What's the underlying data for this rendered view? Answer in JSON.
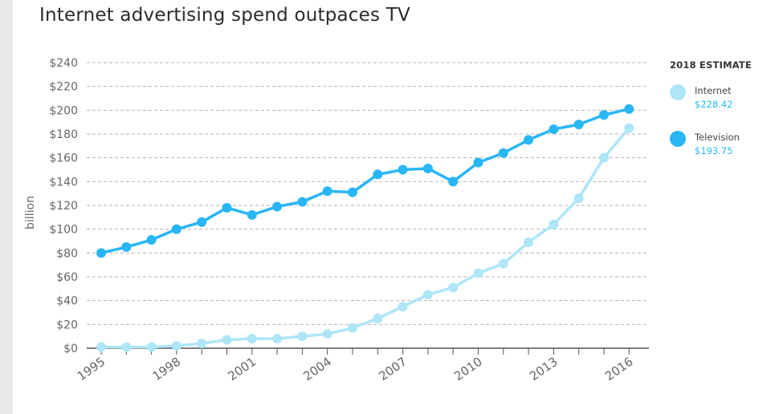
{
  "title": "Internet advertising spend outpaces TV",
  "chart_data": {
    "type": "line",
    "title": "Internet advertising spend outpaces TV",
    "ylabel": "billion",
    "xlabel": "",
    "ylim": [
      0,
      240
    ],
    "yticks": [
      0,
      20,
      40,
      60,
      80,
      100,
      120,
      140,
      160,
      180,
      200,
      220,
      240
    ],
    "ytick_labels": [
      "$0",
      "$20",
      "$40",
      "$60",
      "$80",
      "$100",
      "$120",
      "$140",
      "$160",
      "$180",
      "$200",
      "$220",
      "$240"
    ],
    "x": [
      1995,
      1996,
      1997,
      1998,
      1999,
      2000,
      2001,
      2002,
      2003,
      2004,
      2005,
      2006,
      2007,
      2008,
      2009,
      2010,
      2011,
      2012,
      2013,
      2014,
      2015,
      2016
    ],
    "xtick_labels": [
      "1995",
      "1998",
      "2001",
      "2004",
      "2007",
      "2010",
      "2013",
      "2016"
    ],
    "grid": "horizontal dashed",
    "series": [
      {
        "name": "Internet",
        "color": "#aee6f8",
        "values": [
          1,
          1,
          1,
          2,
          4,
          7,
          8,
          8,
          10,
          12,
          17,
          25,
          35,
          45,
          51,
          63,
          71,
          89,
          104,
          126,
          160,
          185
        ]
      },
      {
        "name": "Television",
        "color": "#29b6f6",
        "values": [
          80,
          85,
          91,
          100,
          106,
          118,
          112,
          119,
          123,
          132,
          131,
          146,
          150,
          151,
          140,
          156,
          164,
          175,
          184,
          188,
          196,
          201
        ]
      }
    ]
  },
  "legend": {
    "title": "2018 ESTIMATE",
    "items": [
      {
        "name": "Internet",
        "value": "$228.42",
        "color": "#aee6f8"
      },
      {
        "name": "Television",
        "value": "$193.75",
        "color": "#29b6f6"
      }
    ]
  }
}
